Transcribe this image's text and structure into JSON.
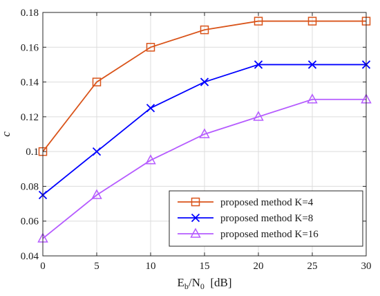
{
  "chart_data": {
    "type": "line",
    "title": "",
    "xlabel": "E_b/N_0  [dB]",
    "xlabel_parts": {
      "base1": "E",
      "sub1": "b",
      "sep": "/N",
      "sub2": "0",
      "unit": "  [dB]"
    },
    "ylabel": "c",
    "xlim": [
      0,
      30
    ],
    "ylim": [
      0.04,
      0.18
    ],
    "x_ticks": [
      0,
      5,
      10,
      15,
      20,
      25,
      30
    ],
    "x_tick_labels": [
      "0",
      "5",
      "10",
      "15",
      "20",
      "25",
      "30"
    ],
    "y_ticks": [
      0.04,
      0.06,
      0.08,
      0.1,
      0.12,
      0.14,
      0.16,
      0.18
    ],
    "y_tick_labels": [
      "0.04",
      "0.06",
      "0.08",
      "0.1",
      "0.12",
      "0.14",
      "0.16",
      "0.18"
    ],
    "grid": true,
    "legend_position": "bottom-right",
    "x": [
      0,
      5,
      10,
      15,
      20,
      25,
      30
    ],
    "series": [
      {
        "name": "proposed method  K=4",
        "marker": "square",
        "color": "#d95319",
        "values": [
          0.1,
          0.14,
          0.16,
          0.17,
          0.175,
          0.175,
          0.175
        ]
      },
      {
        "name": "proposed method  K=8",
        "marker": "x",
        "color": "#0000ff",
        "values": [
          0.075,
          0.1,
          0.125,
          0.14,
          0.15,
          0.15,
          0.15
        ]
      },
      {
        "name": "proposed method  K=16",
        "marker": "triangle",
        "color": "#b55bff",
        "values": [
          0.05,
          0.075,
          0.095,
          0.11,
          0.12,
          0.13,
          0.13
        ]
      }
    ]
  }
}
